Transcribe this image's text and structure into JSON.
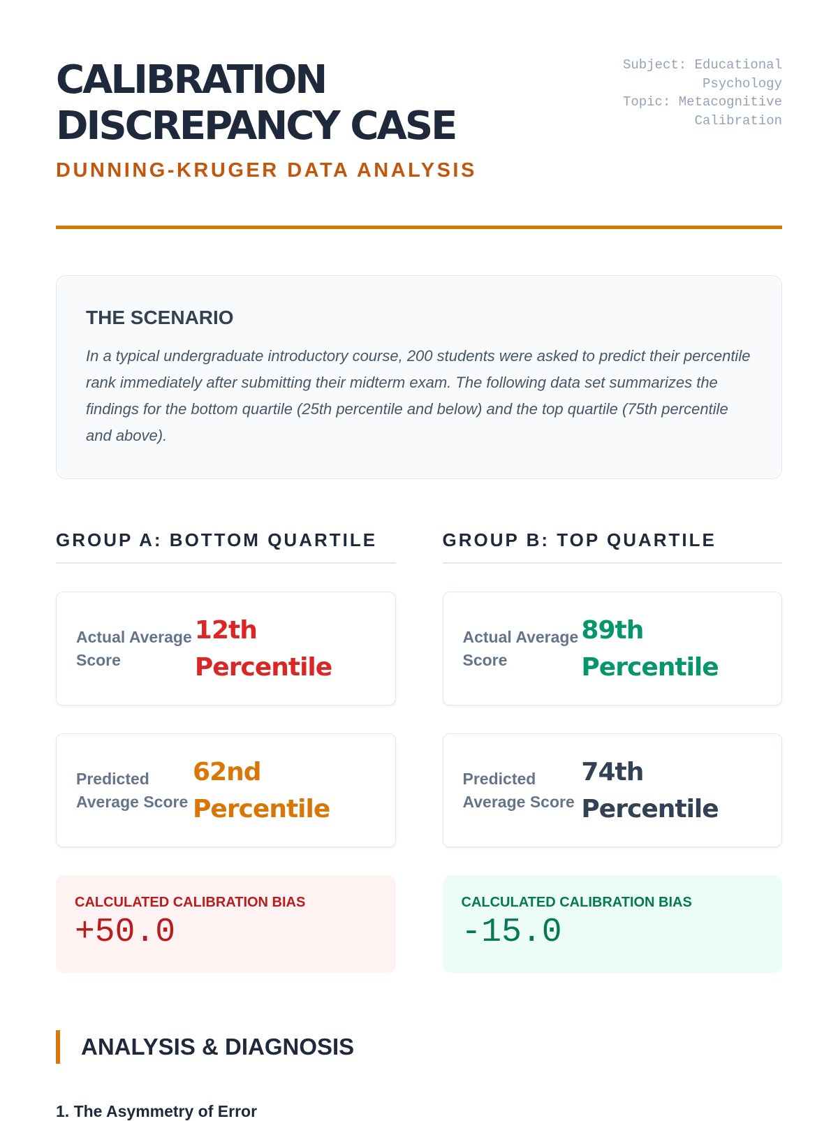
{
  "header": {
    "title_line1": "CALIBRATION",
    "title_line2": "DISCREPANCY CASE",
    "subtitle": "DUNNING-KRUGER DATA ANALYSIS",
    "subject": "Subject: Educational Psychology",
    "topic": "Topic: Metacognitive Calibration"
  },
  "scenario": {
    "title": "THE SCENARIO",
    "text": "In a typical undergraduate introductory course, 200 students were asked to predict their percentile rank immediately after submitting their midterm exam. The following data set summarizes the findings for the bottom quartile (25th percentile and below) and the top quartile (75th percentile and above)."
  },
  "groups": [
    {
      "title": "GROUP A: BOTTOM QUARTILE",
      "actual_label": "Actual Average Score",
      "actual_value": "12th Percentile",
      "actual_color": "#dc2626",
      "predicted_label": "Predicted Average Score",
      "predicted_value": "62nd Percentile",
      "predicted_color": "#d97706",
      "bias_label": "CALCULATED CALIBRATION BIAS",
      "bias_value": "+50.0",
      "bias_color": "#b91c1c",
      "bias_bg": "#fef2f2"
    },
    {
      "title": "GROUP B: TOP QUARTILE",
      "actual_label": "Actual Average Score",
      "actual_value": "89th Percentile",
      "actual_color": "#059669",
      "predicted_label": "Predicted Average Score",
      "predicted_value": "74th Percentile",
      "predicted_color": "#334155",
      "bias_label": "CALCULATED CALIBRATION BIAS",
      "bias_value": "-15.0",
      "bias_color": "#047857",
      "bias_bg": "#ecfdf5"
    }
  ],
  "analysis": {
    "title": "ANALYSIS & DIAGNOSIS",
    "section1": "1. The Asymmetry of Error"
  }
}
